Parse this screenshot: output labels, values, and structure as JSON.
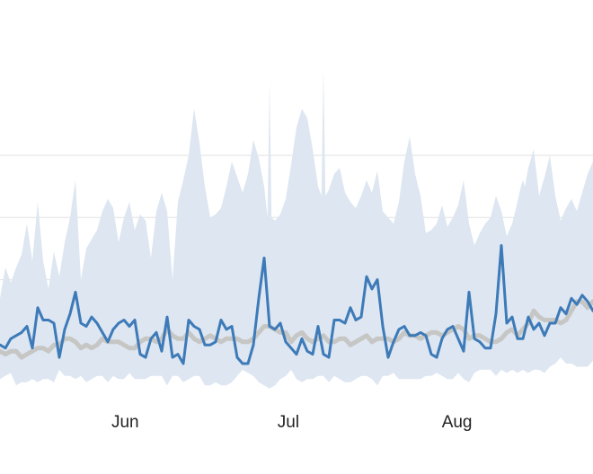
{
  "chart_data": {
    "type": "line",
    "title": "",
    "xlabel": "",
    "ylabel": "",
    "x_tick_labels": [
      "Jun",
      "Jul",
      "Aug"
    ],
    "x_tick_days": [
      31,
      61,
      92
    ],
    "x_range_days": [
      8,
      117
    ],
    "y_range": [
      0,
      130
    ],
    "grid": "horizontal",
    "grid_values": [
      40,
      60,
      80
    ],
    "legend": "none",
    "colors": {
      "line": "#3d7ab8",
      "band": "#dde6f1",
      "median": "#c6c6c4",
      "grid": "#e4e4e4"
    },
    "series": [
      {
        "role": "band-upper",
        "values": [
          34,
          44,
          39,
          44,
          48,
          58,
          46,
          65,
          46,
          37,
          49,
          41,
          52,
          60,
          72,
          40,
          50,
          53,
          56,
          62,
          66,
          63,
          52,
          60,
          65,
          56,
          61,
          59,
          47,
          62,
          68,
          62,
          40,
          65,
          72,
          80,
          95,
          84,
          70,
          60,
          61,
          63,
          70,
          78,
          73,
          68,
          74,
          85,
          79,
          70,
          60,
          59,
          61,
          66,
          77,
          89,
          95,
          92,
          82,
          70,
          67,
          69,
          74,
          76,
          68,
          65,
          63,
          67,
          72,
          68,
          75,
          62,
          60,
          58,
          65,
          78,
          86,
          74,
          67,
          55,
          56,
          58,
          64,
          57,
          60,
          64,
          72,
          58,
          51,
          55,
          58,
          60,
          67,
          62,
          54,
          58,
          65,
          70,
          76,
          82,
          67,
          73,
          80,
          67,
          59,
          63,
          66,
          62,
          68,
          74,
          78
        ],
        "spikes": [
          {
            "index": 50,
            "value": 104
          },
          {
            "index": 60,
            "value": 108
          },
          {
            "index": 97,
            "value": 72
          }
        ]
      },
      {
        "role": "band-lower",
        "values": [
          8,
          9,
          10,
          6,
          7,
          7,
          8,
          7,
          8,
          8,
          7,
          11,
          9,
          9,
          8,
          9,
          7,
          8,
          9,
          9,
          7,
          9,
          8,
          8,
          10,
          8,
          8,
          8,
          9,
          9,
          9,
          6,
          9,
          9,
          7,
          8,
          9,
          9,
          6,
          6,
          7,
          6,
          6,
          7,
          9,
          11,
          10,
          9,
          7,
          6,
          5,
          6,
          8,
          9,
          11,
          8,
          7,
          8,
          8,
          9,
          9,
          7,
          9,
          8,
          7,
          7,
          8,
          9,
          9,
          8,
          6,
          9,
          9,
          10,
          8,
          8,
          8,
          8,
          8,
          9,
          9,
          10,
          9,
          8,
          8,
          10,
          8,
          7,
          10,
          11,
          11,
          11,
          9,
          11,
          10,
          11,
          10,
          11,
          10,
          11,
          11,
          10,
          12,
          13,
          15,
          13,
          13,
          12,
          12,
          12,
          14
        ]
      },
      {
        "role": "median",
        "values": [
          17,
          16,
          17,
          17,
          15,
          16,
          17,
          18,
          18,
          17,
          19,
          19,
          21,
          21,
          20,
          18,
          19,
          18,
          19,
          21,
          20,
          20,
          20,
          19,
          18,
          18,
          20,
          21,
          21,
          20,
          21,
          24,
          22,
          21,
          21,
          23,
          21,
          20,
          21,
          22,
          21,
          20,
          21,
          21,
          21,
          20,
          20,
          21,
          23,
          25,
          25,
          24,
          23,
          23,
          20,
          22,
          23,
          21,
          20,
          21,
          22,
          20,
          20,
          21,
          21,
          19,
          20,
          21,
          22,
          20,
          21,
          21,
          21,
          20,
          21,
          23,
          22,
          22,
          21,
          22,
          23,
          23,
          22,
          23,
          24,
          25,
          24,
          21,
          22,
          22,
          21,
          20,
          20,
          21,
          23,
          24,
          22,
          24,
          26,
          30,
          28,
          27,
          27,
          27,
          26,
          27,
          30,
          33,
          33,
          31,
          33
        ]
      },
      {
        "role": "line",
        "values": [
          19,
          18,
          21,
          22,
          23,
          25,
          18,
          31,
          27,
          27,
          26,
          15,
          24,
          29,
          36,
          26,
          25,
          28,
          26,
          23,
          20,
          24,
          26,
          27,
          25,
          27,
          16,
          15,
          21,
          23,
          17,
          28,
          15,
          16,
          13,
          27,
          25,
          24,
          19,
          19,
          20,
          27,
          24,
          25,
          15,
          13,
          13,
          19,
          34,
          47,
          25,
          24,
          26,
          20,
          18,
          16,
          21,
          17,
          16,
          25,
          16,
          15,
          27,
          27,
          26,
          31,
          27,
          28,
          41,
          37,
          40,
          25,
          15,
          20,
          24,
          25,
          22,
          22,
          23,
          22,
          16,
          15,
          21,
          24,
          25,
          21,
          17,
          36,
          21,
          20,
          18,
          18,
          29,
          51,
          26,
          28,
          21,
          21,
          28,
          24,
          26,
          22,
          26,
          26,
          31,
          29,
          34,
          32,
          35,
          33,
          30
        ]
      }
    ]
  }
}
